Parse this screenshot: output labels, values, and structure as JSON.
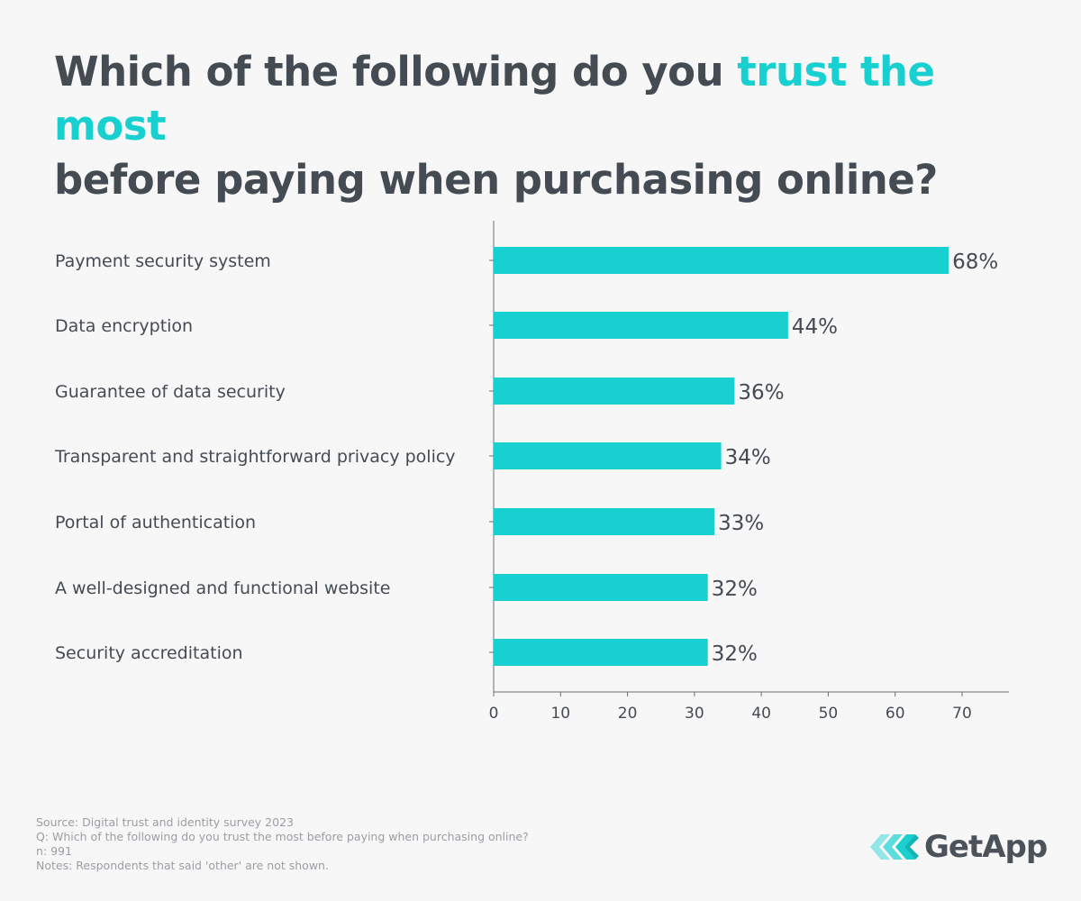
{
  "title": {
    "part1": "Which of the following do you ",
    "highlight": "trust the most",
    "part2": "before paying when purchasing online?"
  },
  "chart_data": {
    "type": "bar",
    "orientation": "horizontal",
    "categories": [
      "Payment security system",
      "Data encryption",
      "Guarantee of data security",
      "Transparent and straightforward privacy policy",
      "Portal of authentication",
      "A well-designed and functional website",
      "Security accreditation"
    ],
    "values": [
      68,
      44,
      36,
      34,
      33,
      32,
      32
    ],
    "value_labels": [
      "68%",
      "44%",
      "36%",
      "34%",
      "33%",
      "32%",
      "32%"
    ],
    "xlim": [
      0,
      77
    ],
    "xticks": [
      0,
      10,
      20,
      30,
      40,
      50,
      60,
      70
    ],
    "grid": false,
    "bar_color": "#19d0d0",
    "highlight_color": "#19d0d0"
  },
  "footer": {
    "source": "Source: Digital trust and identity survey 2023",
    "question": "Q: Which of the following do you trust the most before paying when purchasing online?",
    "n": "n: 991",
    "notes": "Notes: Respondents that said 'other' are not shown."
  },
  "logo": {
    "text": "GetApp",
    "icon": "getapp-chevrons-icon"
  }
}
